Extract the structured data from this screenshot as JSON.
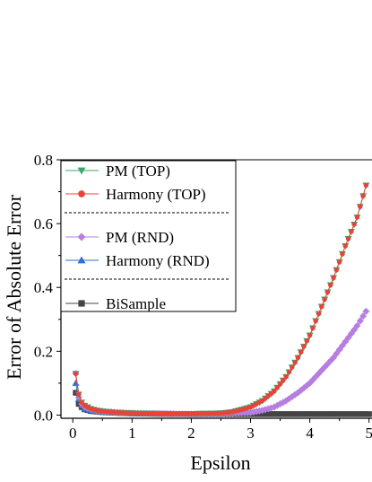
{
  "chart_data": {
    "type": "scatter",
    "title": "",
    "xlabel": "Epsilon",
    "ylabel": "Error of Absolute Error",
    "xlim": [
      -0.2,
      5.05
    ],
    "ylim": [
      -0.01,
      0.8
    ],
    "x_ticks": [
      0,
      1,
      2,
      3,
      4,
      5
    ],
    "y_ticks": [
      0.0,
      0.2,
      0.4,
      0.6,
      0.8
    ],
    "x_tick_labels": [
      "0",
      "1",
      "2",
      "3",
      "4",
      "5"
    ],
    "y_tick_labels": [
      "0.0",
      "0.2",
      "0.4",
      "0.6",
      "0.8"
    ],
    "legend_position": "top-left",
    "legend_groups": [
      [
        "PM (TOP)",
        "Harmony (TOP)"
      ],
      [
        "PM (RND)",
        "Harmony (RND)"
      ],
      [
        "BiSample"
      ]
    ],
    "series": [
      {
        "name": "PM (TOP)",
        "color": "#3aa86b",
        "marker": "triangle-down",
        "points": [
          [
            0.05,
            0.13
          ],
          [
            0.1,
            0.065
          ],
          [
            0.15,
            0.04
          ],
          [
            0.2,
            0.03
          ],
          [
            0.3,
            0.02
          ],
          [
            0.4,
            0.015
          ],
          [
            0.5,
            0.012
          ],
          [
            0.75,
            0.008
          ],
          [
            1.0,
            0.006
          ],
          [
            1.5,
            0.004
          ],
          [
            2.0,
            0.004
          ],
          [
            2.5,
            0.006
          ],
          [
            2.7,
            0.01
          ],
          [
            3.0,
            0.025
          ],
          [
            3.2,
            0.045
          ],
          [
            3.4,
            0.075
          ],
          [
            3.6,
            0.12
          ],
          [
            3.8,
            0.18
          ],
          [
            4.0,
            0.25
          ],
          [
            4.2,
            0.34
          ],
          [
            4.4,
            0.43
          ],
          [
            4.6,
            0.53
          ],
          [
            4.8,
            0.62
          ],
          [
            4.95,
            0.72
          ]
        ]
      },
      {
        "name": "Harmony (TOP)",
        "color": "#e8433a",
        "marker": "circle",
        "points": [
          [
            0.05,
            0.13
          ],
          [
            0.1,
            0.065
          ],
          [
            0.15,
            0.04
          ],
          [
            0.2,
            0.03
          ],
          [
            0.3,
            0.02
          ],
          [
            0.4,
            0.015
          ],
          [
            0.5,
            0.012
          ],
          [
            0.75,
            0.008
          ],
          [
            1.0,
            0.006
          ],
          [
            1.5,
            0.004
          ],
          [
            2.0,
            0.004
          ],
          [
            2.5,
            0.006
          ],
          [
            2.7,
            0.01
          ],
          [
            3.0,
            0.025
          ],
          [
            3.2,
            0.045
          ],
          [
            3.4,
            0.075
          ],
          [
            3.6,
            0.12
          ],
          [
            3.8,
            0.18
          ],
          [
            4.0,
            0.25
          ],
          [
            4.2,
            0.34
          ],
          [
            4.4,
            0.43
          ],
          [
            4.6,
            0.53
          ],
          [
            4.8,
            0.62
          ],
          [
            4.95,
            0.72
          ]
        ]
      },
      {
        "name": "PM (RND)",
        "color": "#b57ee0",
        "marker": "diamond",
        "points": [
          [
            0.05,
            0.13
          ],
          [
            0.1,
            0.055
          ],
          [
            0.15,
            0.035
          ],
          [
            0.2,
            0.025
          ],
          [
            0.3,
            0.018
          ],
          [
            0.4,
            0.014
          ],
          [
            0.5,
            0.011
          ],
          [
            0.75,
            0.008
          ],
          [
            1.0,
            0.006
          ],
          [
            1.5,
            0.004
          ],
          [
            2.0,
            0.003
          ],
          [
            2.5,
            0.004
          ],
          [
            3.0,
            0.008
          ],
          [
            3.2,
            0.015
          ],
          [
            3.4,
            0.025
          ],
          [
            3.6,
            0.045
          ],
          [
            3.8,
            0.07
          ],
          [
            4.0,
            0.1
          ],
          [
            4.2,
            0.14
          ],
          [
            4.4,
            0.18
          ],
          [
            4.6,
            0.23
          ],
          [
            4.8,
            0.28
          ],
          [
            4.95,
            0.325
          ]
        ]
      },
      {
        "name": "Harmony (RND)",
        "color": "#2d6fd6",
        "marker": "triangle-up",
        "points": [
          [
            0.05,
            0.1
          ],
          [
            0.1,
            0.05
          ],
          [
            0.15,
            0.03
          ],
          [
            0.2,
            0.02
          ],
          [
            0.3,
            0.015
          ],
          [
            0.5,
            0.01
          ],
          [
            1.0,
            0.005
          ]
        ]
      },
      {
        "name": "BiSample",
        "color": "#444444",
        "marker": "square",
        "points": [
          [
            0.05,
            0.07
          ],
          [
            0.1,
            0.035
          ],
          [
            0.15,
            0.025
          ],
          [
            0.2,
            0.018
          ],
          [
            0.3,
            0.013
          ],
          [
            0.5,
            0.009
          ],
          [
            0.75,
            0.007
          ],
          [
            1.0,
            0.005
          ],
          [
            1.5,
            0.004
          ],
          [
            2.0,
            0.003
          ],
          [
            2.5,
            0.003
          ],
          [
            3.0,
            0.003
          ],
          [
            3.5,
            0.003
          ],
          [
            4.0,
            0.003
          ],
          [
            4.5,
            0.003
          ],
          [
            5.0,
            0.003
          ]
        ]
      }
    ]
  }
}
